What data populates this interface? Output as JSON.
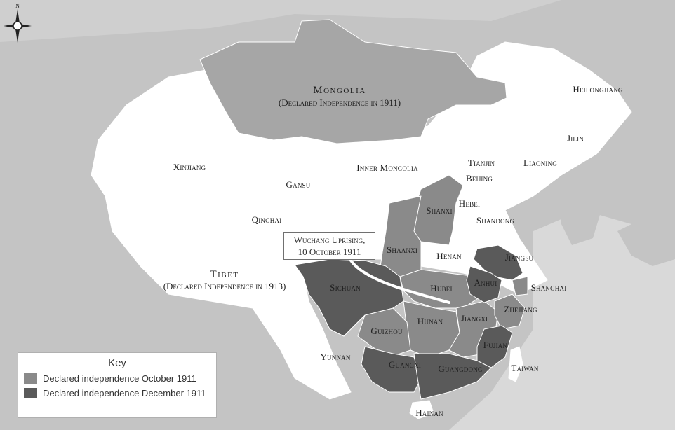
{
  "compass": {
    "north_label": "N"
  },
  "regions": {
    "mongolia": {
      "name": "Mongolia",
      "note": "(Declared Independence in 1911)"
    },
    "tibet": {
      "name": "Tibet",
      "note": "(Declared Independence in 1913)"
    },
    "xinjiang": "Xinjiang",
    "inner_mongolia": "Inner Mongolia",
    "gansu": "Gansu",
    "qinghai": "Qinghai",
    "heilongjiang": "Heilongjiang",
    "jilin": "Jilin",
    "liaoning": "Liaoning",
    "tianjin": "Tianjin",
    "beijing": "Beijing",
    "hebei": "Hebei",
    "shandong": "Shandong",
    "shanxi": "Shanxi",
    "shaanxi": "Shaanxi",
    "henan": "Henan",
    "jiangsu": "Jiangsu",
    "anhui": "Anhui",
    "shanghai": "Shanghai",
    "hubei": "Hubei",
    "sichuan": "Sichuan",
    "zhejiang": "Zhejiang",
    "hunan": "Hunan",
    "jiangxi": "Jiangxi",
    "guizhou": "Guizhou",
    "fujian": "Fujian",
    "yunnan": "Yunnan",
    "guangxi": "Guangxi",
    "guangdong": "Guangdong",
    "taiwan": "Taiwan",
    "hainan": "Hainan"
  },
  "callout": {
    "line1": "Wuchang Uprising,",
    "line2": "10 October 1911"
  },
  "key": {
    "title": "Key",
    "items": [
      {
        "label": "Declared independence October 1911",
        "color": "#8a8a8a"
      },
      {
        "label": "Declared independence December 1911",
        "color": "#5a5a5a"
      }
    ]
  },
  "colors": {
    "background": "#cfcfcf",
    "non_independent": "#ffffff",
    "october_1911": "#8a8a8a",
    "december_1911": "#5a5a5a",
    "mongolia": "#a6a6a6"
  }
}
